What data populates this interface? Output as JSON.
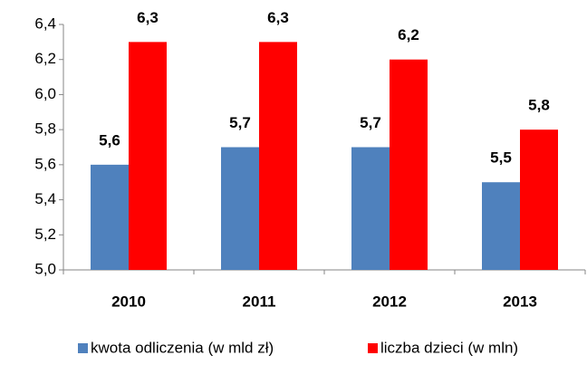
{
  "chart_data": {
    "type": "bar",
    "categories": [
      "2010",
      "2011",
      "2012",
      "2013"
    ],
    "series": [
      {
        "name": "kwota odliczenia (w mld zł)",
        "color": "#4f81bd",
        "values": [
          5.6,
          5.7,
          5.7,
          5.5
        ],
        "value_labels": [
          "5,6",
          "5,7",
          "5,7",
          "5,5"
        ]
      },
      {
        "name": "liczba dzieci (w mln)",
        "color": "#ff0000",
        "values": [
          6.3,
          6.3,
          6.2,
          5.8
        ],
        "value_labels": [
          "6,3",
          "6,3",
          "6,2",
          "5,8"
        ]
      }
    ],
    "ylim": [
      5.0,
      6.4
    ],
    "yticks": [
      {
        "value": 5.0,
        "label": "5,0"
      },
      {
        "value": 5.2,
        "label": "5,2"
      },
      {
        "value": 5.4,
        "label": "5,4"
      },
      {
        "value": 5.6,
        "label": "5,6"
      },
      {
        "value": 5.8,
        "label": "5,8"
      },
      {
        "value": 6.0,
        "label": "6,0"
      },
      {
        "value": 6.2,
        "label": "6,2"
      },
      {
        "value": 6.4,
        "label": "6,4"
      }
    ],
    "grid": false,
    "legend": "bottom"
  }
}
